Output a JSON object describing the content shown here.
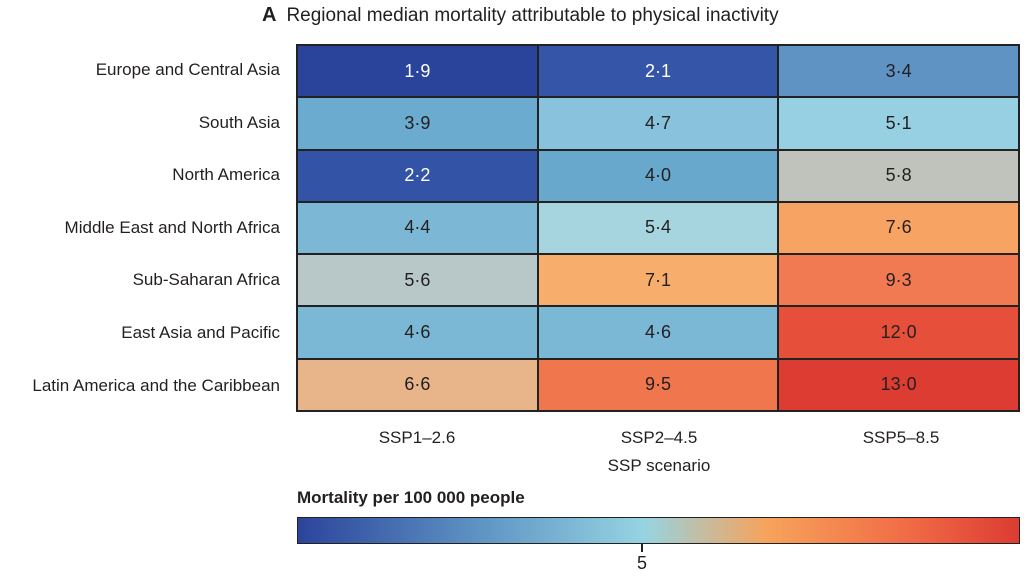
{
  "chart_data": {
    "type": "heatmap",
    "panel_letter": "A",
    "title": "Regional median mortality attributable to physical inactivity",
    "xlabel": "SSP scenario",
    "columns": [
      "SSP1–2.6",
      "SSP2–4.5",
      "SSP5–8.5"
    ],
    "rows": [
      "Europe and Central Asia",
      "South Asia",
      "North America",
      "Middle East and North Africa",
      "Sub-Saharan Africa",
      "East Asia and Pacific",
      "Latin America and the Caribbean"
    ],
    "values": [
      [
        "1·9",
        "2·1",
        "3·4"
      ],
      [
        "3·9",
        "4·7",
        "5·1"
      ],
      [
        "2·2",
        "4·0",
        "5·8"
      ],
      [
        "4·4",
        "5·4",
        "7·6"
      ],
      [
        "5·6",
        "7·1",
        "9·3"
      ],
      [
        "4·6",
        "4·6",
        "12·0"
      ],
      [
        "6·6",
        "9·5",
        "13·0"
      ]
    ],
    "cell_colors": [
      [
        "#2b449b",
        "#3556a8",
        "#5e93c3"
      ],
      [
        "#6aabcf",
        "#88c2dc",
        "#96d0e2"
      ],
      [
        "#3253a6",
        "#69a8cd",
        "#c0c3bb"
      ],
      [
        "#7cb8d6",
        "#a6d4df",
        "#f7a363"
      ],
      [
        "#b8c8c8",
        "#f7ad6c",
        "#f17a52"
      ],
      [
        "#7ab8d6",
        "#7ab8d6",
        "#e6503a"
      ],
      [
        "#e8b48a",
        "#f0774d",
        "#dc3c32"
      ]
    ],
    "colorbar": {
      "title": "Mortality per 100 000 people",
      "ticks": [
        "5"
      ],
      "colors": [
        "#2b449b",
        "#5e93c3",
        "#96d4e2",
        "#f7a35c",
        "#f06a45",
        "#dc3c32"
      ]
    }
  }
}
